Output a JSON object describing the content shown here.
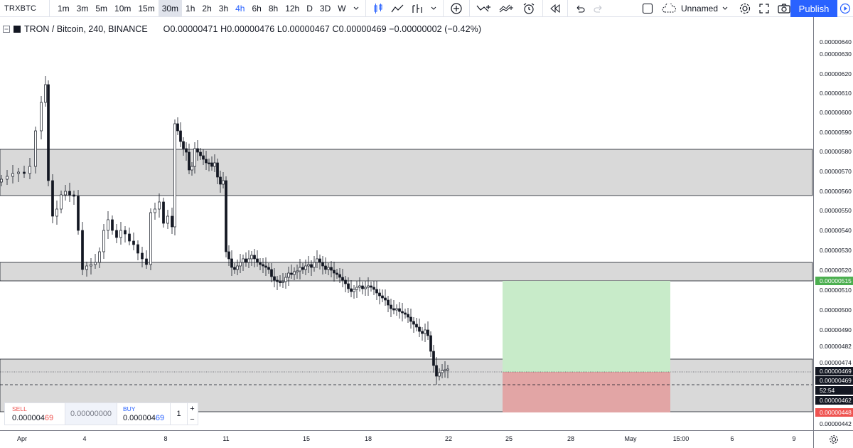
{
  "toolbar": {
    "symbol": "TRXBTC",
    "intervals": [
      {
        "label": "1m",
        "style": ""
      },
      {
        "label": "3m",
        "style": ""
      },
      {
        "label": "5m",
        "style": ""
      },
      {
        "label": "10m",
        "style": ""
      },
      {
        "label": "15m",
        "style": ""
      },
      {
        "label": "30m",
        "style": "active"
      },
      {
        "label": "1h",
        "style": ""
      },
      {
        "label": "2h",
        "style": ""
      },
      {
        "label": "3h",
        "style": ""
      },
      {
        "label": "4h",
        "style": "blue"
      },
      {
        "label": "6h",
        "style": ""
      },
      {
        "label": "8h",
        "style": ""
      },
      {
        "label": "12h",
        "style": ""
      },
      {
        "label": "D",
        "style": ""
      },
      {
        "label": "3D",
        "style": ""
      },
      {
        "label": "W",
        "style": ""
      }
    ],
    "layout_name": "Unnamed",
    "publish_label": "Publish"
  },
  "legend": {
    "title": "TRON / Bitcoin, 240, BINANCE",
    "ohlc": "O0.00000471  H0.00000476  L0.00000467  C0.00000469  −0.00000002 (−0.42%)"
  },
  "price_axis": {
    "ticks": [
      "0.00000640",
      "0.00000630",
      "0.00000620",
      "0.00000610",
      "0.00000600",
      "0.00000590",
      "0.00000580",
      "0.00000570",
      "0.00000560",
      "0.00000550",
      "0.00000540",
      "0.00000530",
      "0.00000520",
      "0.00000510",
      "0.00000500",
      "0.00000490",
      "0.00000482",
      "0.00000474",
      "0.00000442"
    ],
    "tags": [
      {
        "text": "0.00000515",
        "color": "#4caf50"
      },
      {
        "text": "0.00000469",
        "color": "#131722"
      },
      {
        "text": "0.00000469",
        "color": "#131722"
      },
      {
        "text": "52:54",
        "color": "#131722"
      },
      {
        "text": "0.00000462",
        "color": "#131722"
      },
      {
        "text": "0.00000448",
        "color": "#ef5350"
      }
    ]
  },
  "time_axis": {
    "ticks": [
      "Apr",
      "4",
      "8",
      "11",
      "15",
      "18",
      "22",
      "25",
      "28",
      "May",
      "15:00",
      "6",
      "9"
    ]
  },
  "trade_panel": {
    "sell_label": "SELL",
    "sell_price_main": "0.000004",
    "sell_price_hl": "69",
    "spread": "0.00000000",
    "buy_label": "BUY",
    "buy_price_main": "0.000004",
    "buy_price_hl": "69",
    "quantity": "1",
    "plus": "+",
    "minus": "−"
  },
  "colors": {
    "zone_fill": "#d9d9d9",
    "profit_fill": "#c8ebc9",
    "loss_fill": "#e2a5a5",
    "accent": "#2962ff"
  }
}
